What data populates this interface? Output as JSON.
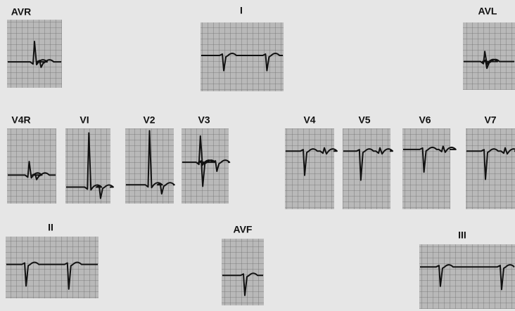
{
  "leads": [
    "AVR",
    "I",
    "AVL",
    "V4R",
    "VI",
    "V2",
    "V3",
    "V4",
    "V5",
    "V6",
    "V7",
    "II",
    "AVF",
    "III"
  ]
}
